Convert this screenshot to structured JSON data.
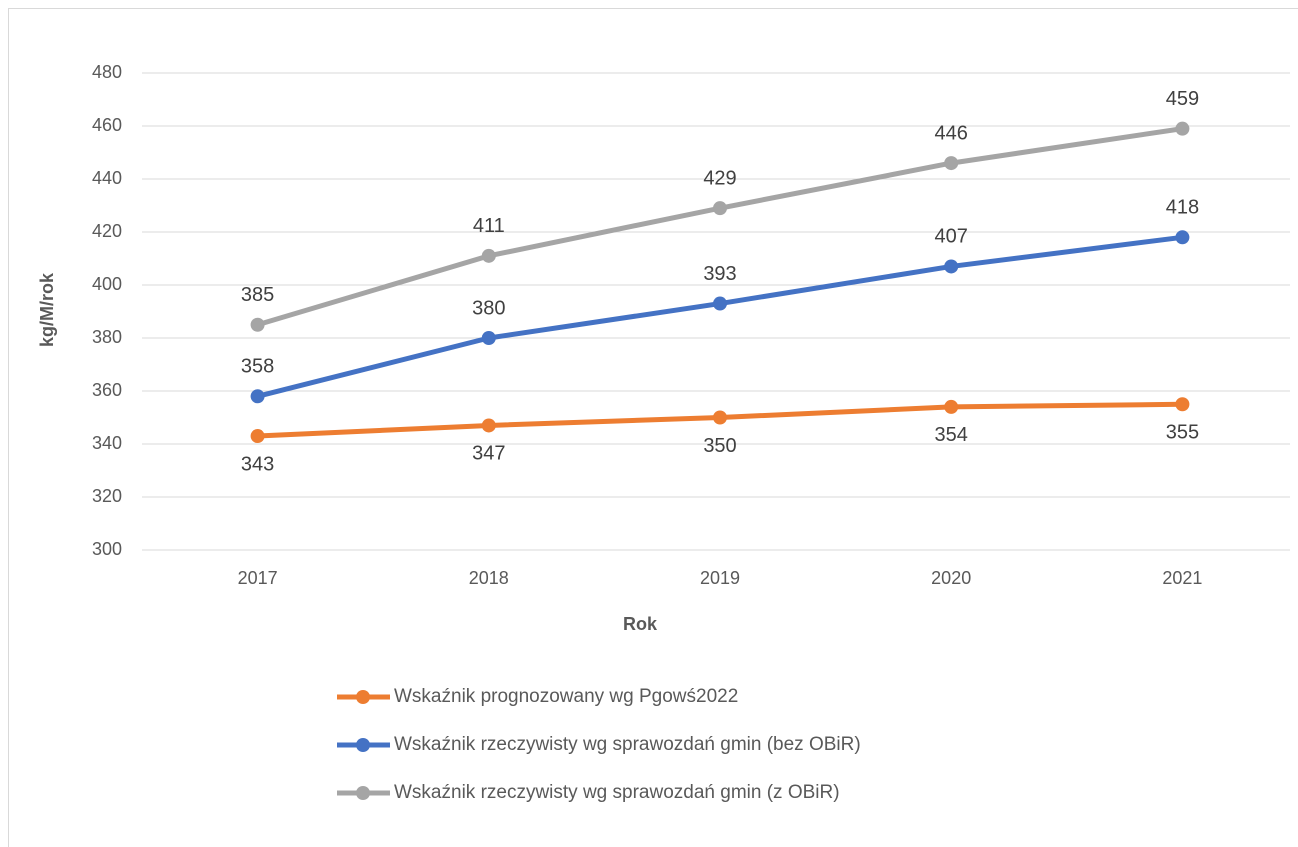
{
  "chart_data": {
    "type": "line",
    "x_label": "Rok",
    "y_label": "kg/M/rok",
    "categories": [
      "2017",
      "2018",
      "2019",
      "2020",
      "2021"
    ],
    "series": [
      {
        "name": "Wskaźnik prognozowany wg Pgowś2022",
        "color": "#ED7D31",
        "label_position": "below",
        "values": [
          343,
          347,
          350,
          354,
          355
        ]
      },
      {
        "name": "Wskaźnik rzeczywisty wg sprawozdań gmin (bez OBiR)",
        "color": "#4472C4",
        "label_position": "above",
        "values": [
          358,
          380,
          393,
          407,
          418
        ]
      },
      {
        "name": "Wskaźnik rzeczywisty wg sprawozdań gmin (z OBiR)",
        "color": "#A5A5A5",
        "label_position": "above",
        "values": [
          385,
          411,
          429,
          446,
          459
        ]
      }
    ],
    "ylim": [
      300,
      480
    ],
    "yticks": [
      300,
      320,
      340,
      360,
      380,
      400,
      420,
      440,
      460,
      480
    ],
    "grid": true,
    "legend": "bottom"
  }
}
